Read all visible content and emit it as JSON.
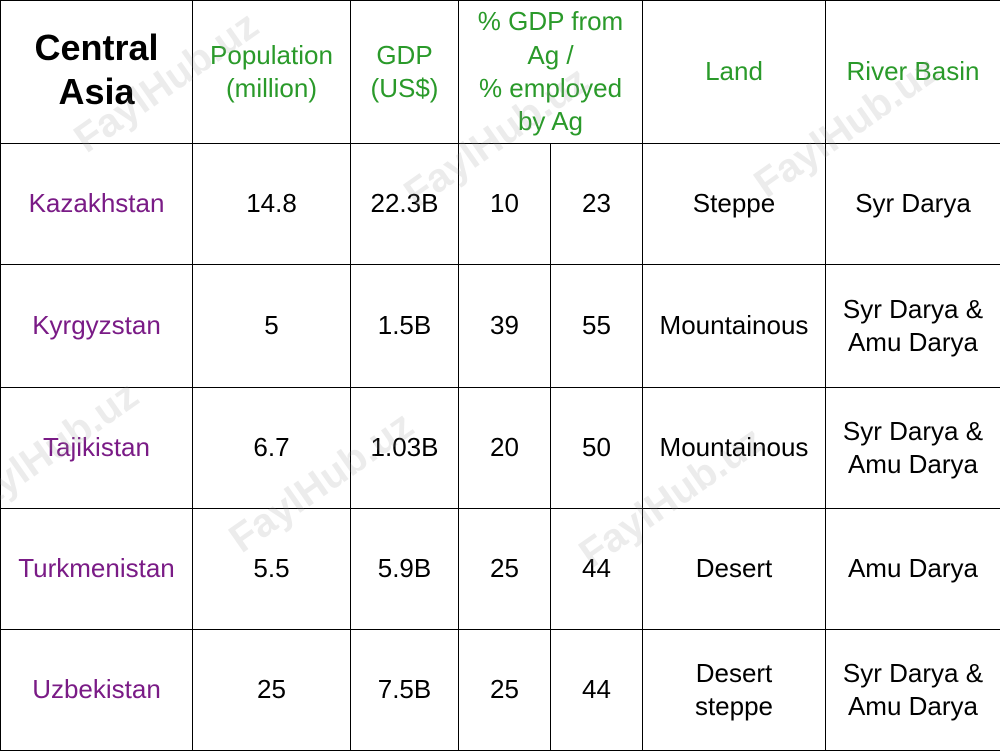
{
  "header": {
    "corner": "Central\nAsia",
    "population": "Population\n(million)",
    "gdp": "GDP\n(US$)",
    "ag": "% GDP from\nAg /\n% employed\nby Ag",
    "land": "Land",
    "river": "River Basin"
  },
  "rows": [
    {
      "country": "Kazakhstan",
      "population": "14.8",
      "gdp": "22.3B",
      "gdp_ag": "10",
      "employed_ag": "23",
      "land": "Steppe",
      "river": "Syr Darya"
    },
    {
      "country": "Kyrgyzstan",
      "population": "5",
      "gdp": "1.5B",
      "gdp_ag": "39",
      "employed_ag": "55",
      "land": "Mountainous",
      "river": "Syr Darya &\nAmu Darya"
    },
    {
      "country": "Tajikistan",
      "population": "6.7",
      "gdp": "1.03B",
      "gdp_ag": "20",
      "employed_ag": "50",
      "land": "Mountainous",
      "river": "Syr Darya &\nAmu Darya"
    },
    {
      "country": "Turkmenistan",
      "population": "5.5",
      "gdp": "5.9B",
      "gdp_ag": "25",
      "employed_ag": "44",
      "land": "Desert",
      "river": "Amu Darya"
    },
    {
      "country": "Uzbekistan",
      "population": "25",
      "gdp": "7.5B",
      "gdp_ag": "25",
      "employed_ag": "44",
      "land": "Desert\nsteppe",
      "river": "Syr Darya &\nAmu Darya"
    }
  ],
  "watermark": "FaylHub.uz",
  "colors": {
    "header": "#2a9a2a",
    "country": "#7a1b86",
    "border": "#000000"
  }
}
